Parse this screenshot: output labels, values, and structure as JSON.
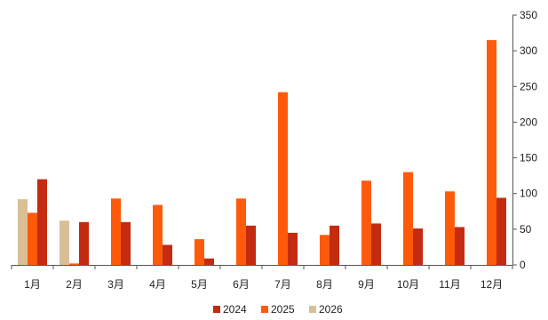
{
  "chart_data": {
    "type": "bar",
    "categories": [
      "1月",
      "2月",
      "3月",
      "4月",
      "5月",
      "6月",
      "7月",
      "8月",
      "9月",
      "10月",
      "11月",
      "12月"
    ],
    "series": [
      {
        "name": "2024",
        "color": "#c42b10",
        "values": [
          120,
          60,
          60,
          28,
          9,
          55,
          45,
          55,
          58,
          51,
          53,
          94
        ]
      },
      {
        "name": "2025",
        "color": "#ff5a0a",
        "values": [
          73,
          2,
          93,
          84,
          36,
          93,
          242,
          42,
          118,
          130,
          103,
          315
        ]
      },
      {
        "name": "2026",
        "color": "#d8bf96",
        "values": [
          92,
          62,
          null,
          null,
          null,
          null,
          null,
          null,
          null,
          null,
          null,
          null
        ]
      }
    ],
    "bar_order": [
      "2026",
      "2025",
      "2024"
    ],
    "ylim": [
      0,
      350
    ],
    "yticks": [
      0,
      50,
      100,
      150,
      200,
      250,
      300,
      350
    ],
    "y_axis_position": "right",
    "title": "",
    "xlabel": "",
    "ylabel": "",
    "grid": false,
    "legend_position": "bottom-center"
  }
}
